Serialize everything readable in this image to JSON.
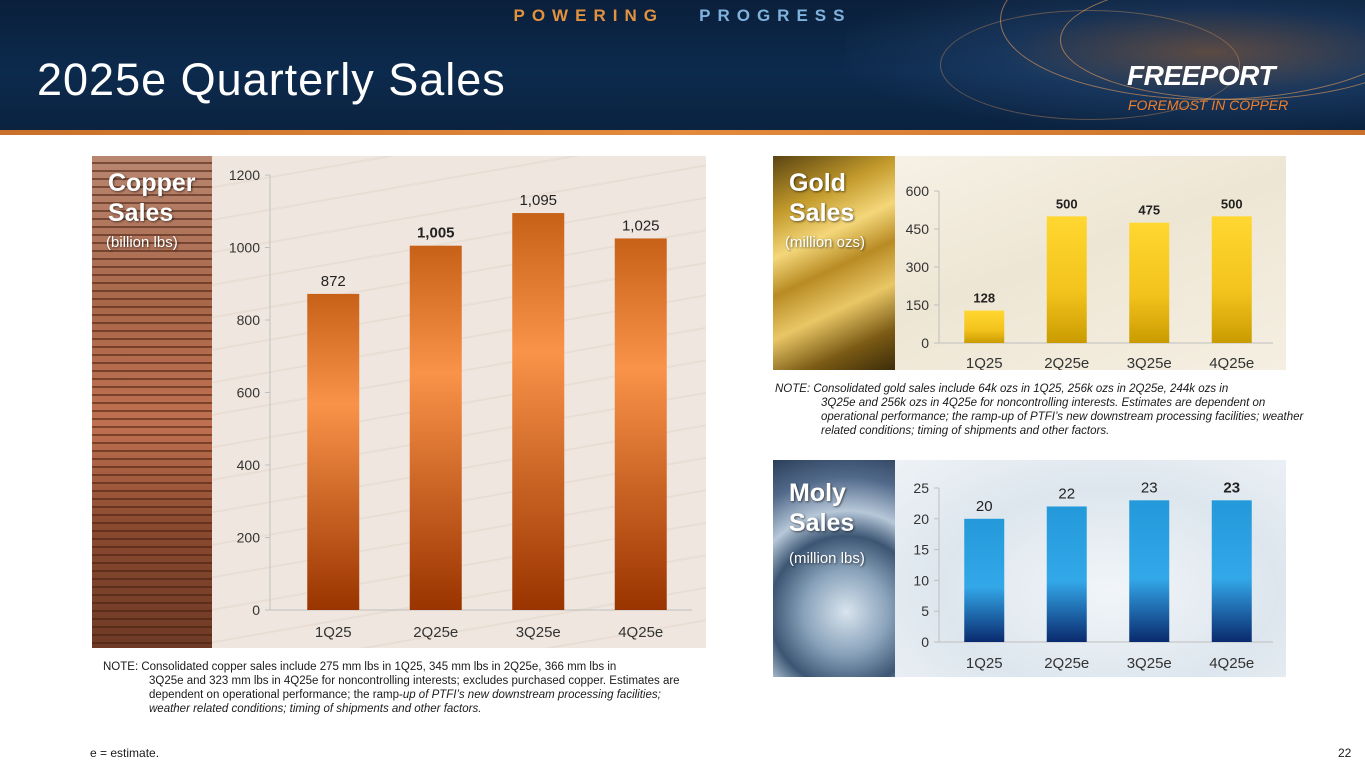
{
  "header": {
    "tagline_part1": "POWERING",
    "tagline_part2": "PROGRESS",
    "title": "2025e Quarterly Sales",
    "brand_name": "FREEPORT",
    "brand_tagline": "FOREMOST IN COPPER",
    "colors": {
      "banner": "#0c2a4d",
      "accent_orange": "#e3923f",
      "accent_blue": "#7fb2dd"
    }
  },
  "panels": {
    "copper": {
      "title_line1": "Copper",
      "title_line2": "Sales",
      "unit": "(billion lbs)"
    },
    "gold": {
      "title_line1": "Gold",
      "title_line2": "Sales",
      "unit": "(million ozs)"
    },
    "moly": {
      "title_line1": "Moly",
      "title_line2": "Sales",
      "unit": "(million lbs)"
    }
  },
  "chart_data": [
    {
      "id": "copper",
      "type": "bar",
      "categories": [
        "1Q25",
        "2Q25e",
        "3Q25e",
        "4Q25e"
      ],
      "values": [
        872,
        1005,
        1095,
        1025
      ],
      "data_labels": [
        "872",
        "1,005",
        "1,095",
        "1,025"
      ],
      "ylim": [
        0,
        1200
      ],
      "yticks": [
        0,
        200,
        400,
        600,
        800,
        1000,
        1200
      ],
      "bar_color": "#e07a30",
      "grid": false
    },
    {
      "id": "gold",
      "type": "bar",
      "categories": [
        "1Q25",
        "2Q25e",
        "3Q25e",
        "4Q25e"
      ],
      "values": [
        128,
        500,
        475,
        500
      ],
      "data_labels": [
        "128",
        "500",
        "475",
        "500"
      ],
      "ylim": [
        0,
        600
      ],
      "yticks": [
        0,
        150,
        300,
        450,
        600
      ],
      "bar_color": "#f2c31c",
      "grid": false
    },
    {
      "id": "moly",
      "type": "bar",
      "categories": [
        "1Q25",
        "2Q25e",
        "3Q25e",
        "4Q25e"
      ],
      "values": [
        20,
        22,
        23,
        23
      ],
      "data_labels": [
        "20",
        "22",
        "23",
        "23"
      ],
      "ylim": [
        0,
        25
      ],
      "yticks": [
        0,
        5,
        10,
        15,
        20,
        25
      ],
      "bar_color": "#1a8fd0",
      "grid": false
    }
  ],
  "notes": {
    "gold_first": "NOTE: Consolidated gold sales include 64k ozs in 1Q25, 256k ozs in 2Q25e, 244k ozs in",
    "gold_rest": "3Q25e and 256k ozs in 4Q25e for noncontrolling interests. Estimates are dependent on operational performance; the ramp-up of PTFI’s new downstream processing facilities; weather related conditions; timing of shipments and other factors.",
    "copper_first": "NOTE: Consolidated copper sales include 275 mm lbs in 1Q25, 345 mm lbs in 2Q25e, 366 mm lbs in",
    "copper_rest_a": "3Q25e and 323 mm lbs in 4Q25e for noncontrolling interests; excludes purchased copper. Estimates are dependent on operational performance; the ramp-",
    "copper_rest_b": "up of PTFI’s new downstream processing facilities; weather related conditions; timing of shipments and other factors."
  },
  "footer": {
    "estimate_note": "e = estimate.",
    "page_number": "22"
  }
}
